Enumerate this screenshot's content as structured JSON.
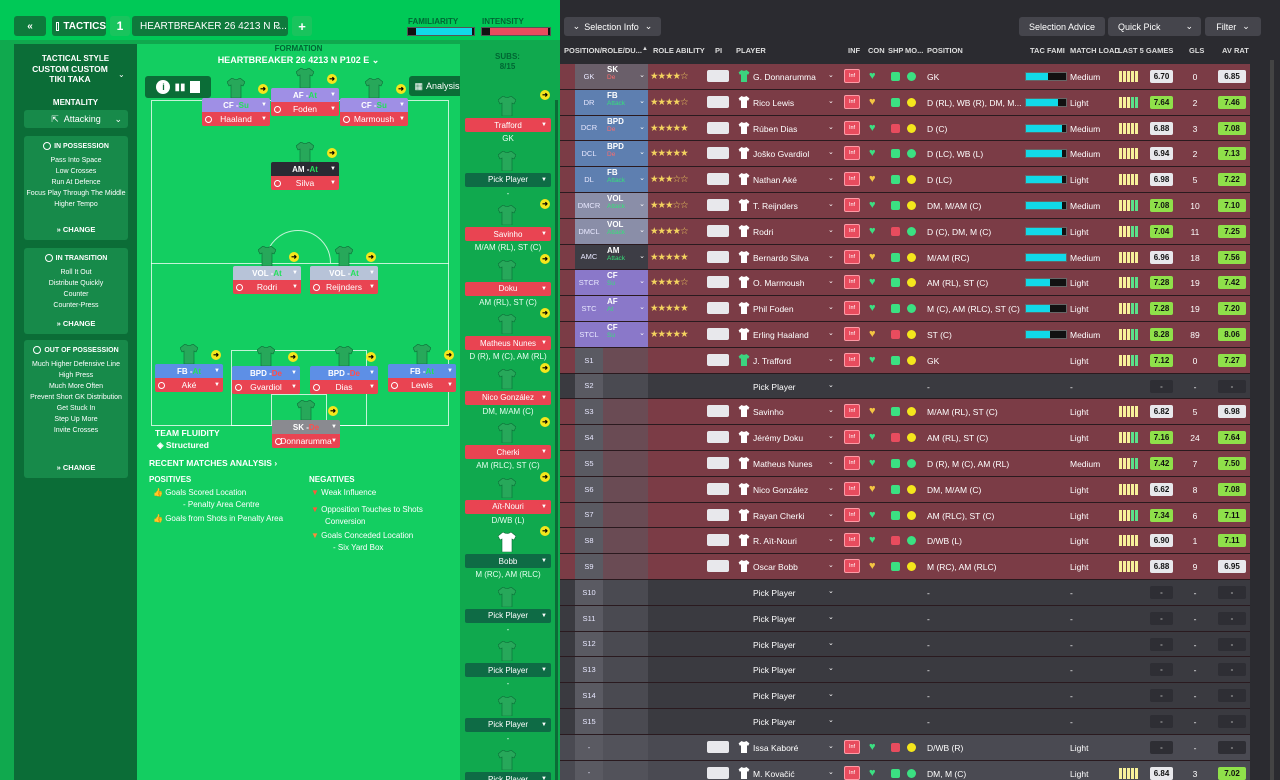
{
  "topbar": {
    "back": "«",
    "tactics": "TACTICS",
    "slot": "1",
    "tactic_name": "HEARTBREAKER 26 4213 N P...",
    "add": "+",
    "familiarity": "FAMILIARITY",
    "intensity": "INTENSITY"
  },
  "sidebar": {
    "style_title": "TACTICAL STYLE",
    "style_name": "CUSTOM CUSTOM TIKI TAKA",
    "mentality_label": "MENTALITY",
    "mentality": "Attacking",
    "boxes": [
      {
        "title": "IN POSSESSION",
        "items": [
          "Pass Into Space",
          "Low Crosses",
          "Run At Defence",
          "Focus Play Through The Middle",
          "Higher Tempo"
        ]
      },
      {
        "title": "IN TRANSITION",
        "items": [
          "Roll It Out",
          "Distribute Quickly",
          "Counter",
          "Counter-Press"
        ]
      },
      {
        "title": "OUT OF POSSESSION",
        "items": [
          "Much Higher Defensive Line",
          "High Press",
          "Much More Often",
          "Prevent Short GK Distribution",
          "Get Stuck In",
          "Step Up More",
          "Invite Crosses"
        ]
      }
    ],
    "change": "CHANGE"
  },
  "pitch": {
    "formation_label": "FORMATION",
    "formation": "HEARTBREAKER 26 4213 N P102 E",
    "analysis": "Analysis",
    "fluidity_label": "TEAM FLUIDITY",
    "fluidity": "Structured",
    "recent": "RECENT MATCHES ANALYSIS",
    "pos_label": "POSITIVES",
    "positives": [
      "Goals Scored Location",
      "- Penalty Area Centre",
      "Goals from Shots in Penalty Area"
    ],
    "neg_label": "NEGATIVES",
    "negatives": [
      "Weak Influence",
      "Opposition Touches to Shots",
      "Conversion",
      "Goals Conceded Location",
      "- Six Yard Box"
    ],
    "players": [
      {
        "role": "CF - ",
        "duty": "Su",
        "name": "Haaland"
      },
      {
        "role": "AF - ",
        "duty": "At",
        "name": "Foden"
      },
      {
        "role": "CF - ",
        "duty": "Su",
        "name": "Marmoush"
      },
      {
        "role": "AM - ",
        "duty": "At",
        "name": "Silva"
      },
      {
        "role": "VOL - ",
        "duty": "At",
        "name": "Rodri"
      },
      {
        "role": "VOL - ",
        "duty": "At",
        "name": "Reijnders"
      },
      {
        "role": "FB - ",
        "duty": "At",
        "name": "Aké"
      },
      {
        "role": "BPD - ",
        "duty": "De",
        "name": "Gvardiol"
      },
      {
        "role": "BPD - ",
        "duty": "De",
        "name": "Dias"
      },
      {
        "role": "FB - ",
        "duty": "At",
        "name": "Lewis"
      },
      {
        "role": "SK - ",
        "duty": "De",
        "name": "Donnarumma"
      }
    ]
  },
  "subs": {
    "label": "SUBS:",
    "count": "8/15",
    "slots": [
      {
        "name": "Trafford",
        "pos": "GK",
        "filled": true
      },
      {
        "name": "Pick Player",
        "pos": "-",
        "filled": false
      },
      {
        "name": "Savinho",
        "pos": "M/AM (RL), ST (C)",
        "filled": true
      },
      {
        "name": "Doku",
        "pos": "AM (RL), ST (C)",
        "filled": true
      },
      {
        "name": "Matheus Nunes",
        "pos": "D (R), M (C), AM (RL)",
        "filled": true
      },
      {
        "name": "Nico González",
        "pos": "DM, M/AM (C)",
        "filled": true
      },
      {
        "name": "Cherki",
        "pos": "AM (RLC), ST (C)",
        "filled": true
      },
      {
        "name": "Aït-Nouri",
        "pos": "D/WB (L)",
        "filled": true
      },
      {
        "name": "Bobb",
        "pos": "M (RC), AM (RLC)",
        "filled": true
      },
      {
        "name": "Pick Player",
        "pos": "-",
        "filled": false
      },
      {
        "name": "Pick Player",
        "pos": "-",
        "filled": false
      },
      {
        "name": "Pick Player",
        "pos": "-",
        "filled": false
      },
      {
        "name": "Pick Player",
        "pos": "-",
        "filled": false
      }
    ]
  },
  "right": {
    "selection_info": "Selection Info",
    "selection_advice": "Selection Advice",
    "quick_pick": "Quick Pick",
    "filter": "Filter",
    "headers": [
      "POSITION/ROLE/DU...",
      "ROLE ABILITY",
      "PI",
      "PLAYER",
      "INF",
      "CON",
      "SHP",
      "MO...",
      "POSITION",
      "TAC FAMI",
      "MATCH LOAD",
      "LAST 5 GAMES",
      "GLS",
      "AV RAT"
    ],
    "rows": [
      {
        "pos": "GK",
        "role": "SK",
        "duty": "De",
        "stars": "★★★★☆",
        "name": "G. Donnarumma",
        "position": "GK",
        "tac": 0.55,
        "load": "Medium",
        "rating": "6.70",
        "gls": "0",
        "avr": "6.85"
      },
      {
        "pos": "DR",
        "role": "FB",
        "duty": "Attack",
        "stars": "★★★★☆",
        "name": "Rico Lewis",
        "position": "D (RL), WB (R), DM, M...",
        "tac": 0.8,
        "load": "Light",
        "rating": "7.64",
        "gls": "2",
        "avr": "7.46"
      },
      {
        "pos": "DCR",
        "role": "BPD",
        "duty": "De",
        "stars": "★★★★★",
        "name": "Rúben Dias",
        "position": "D (C)",
        "tac": 0.9,
        "load": "Medium",
        "rating": "6.88",
        "gls": "3",
        "avr": "7.08"
      },
      {
        "pos": "DCL",
        "role": "BPD",
        "duty": "De",
        "stars": "★★★★★",
        "name": "Joško Gvardiol",
        "position": "D (LC), WB (L)",
        "tac": 0.9,
        "load": "Medium",
        "rating": "6.94",
        "gls": "2",
        "avr": "7.13"
      },
      {
        "pos": "DL",
        "role": "FB",
        "duty": "Attack",
        "stars": "★★★☆☆",
        "name": "Nathan Aké",
        "position": "D (LC)",
        "tac": 0.9,
        "load": "Light",
        "rating": "6.98",
        "gls": "5",
        "avr": "7.22"
      },
      {
        "pos": "DMCR",
        "role": "VOL",
        "duty": "Attack",
        "stars": "★★★☆☆",
        "name": "T. Reijnders",
        "position": "DM, M/AM (C)",
        "tac": 0.9,
        "load": "Medium",
        "rating": "7.08",
        "gls": "10",
        "avr": "7.10"
      },
      {
        "pos": "DMCL",
        "role": "VOL",
        "duty": "Attack",
        "stars": "★★★★☆",
        "name": "Rodri",
        "position": "D (C), DM, M (C)",
        "tac": 0.9,
        "load": "Light",
        "rating": "7.04",
        "gls": "11",
        "avr": "7.25"
      },
      {
        "pos": "AMC",
        "role": "AM",
        "duty": "Attack",
        "stars": "★★★★★",
        "name": "Bernardo Silva",
        "position": "M/AM (RC)",
        "tac": 1.0,
        "load": "Medium",
        "rating": "6.96",
        "gls": "18",
        "avr": "7.56"
      },
      {
        "pos": "STCR",
        "role": "CF",
        "duty": "Su",
        "stars": "★★★★☆",
        "name": "O. Marmoush",
        "position": "AM (RL), ST (C)",
        "tac": 0.6,
        "load": "Light",
        "rating": "7.28",
        "gls": "19",
        "avr": "7.42"
      },
      {
        "pos": "STC",
        "role": "AF",
        "duty": "At",
        "stars": "★★★★★",
        "name": "Phil Foden",
        "position": "M (C), AM (RLC), ST (C)",
        "tac": 0.6,
        "load": "Light",
        "rating": "7.28",
        "gls": "19",
        "avr": "7.20"
      },
      {
        "pos": "STCL",
        "role": "CF",
        "duty": "Su",
        "stars": "★★★★★",
        "name": "Erling Haaland",
        "position": "ST (C)",
        "tac": 0.6,
        "load": "Medium",
        "rating": "8.28",
        "gls": "89",
        "avr": "8.06"
      },
      {
        "pos": "S1",
        "name": "J. Trafford",
        "position": "GK",
        "load": "Light",
        "rating": "7.12",
        "gls": "0",
        "avr": "7.27"
      },
      {
        "pos": "S2",
        "name": "Pick Player",
        "position": "-",
        "load": "-",
        "rating": "-",
        "gls": "-",
        "avr": "-"
      },
      {
        "pos": "S3",
        "name": "Savinho",
        "position": "M/AM (RL), ST (C)",
        "load": "Light",
        "rating": "6.82",
        "gls": "5",
        "avr": "6.98"
      },
      {
        "pos": "S4",
        "name": "Jérémy Doku",
        "position": "AM (RL), ST (C)",
        "load": "Light",
        "rating": "7.16",
        "gls": "24",
        "avr": "7.64"
      },
      {
        "pos": "S5",
        "name": "Matheus Nunes",
        "position": "D (R), M (C), AM (RL)",
        "load": "Medium",
        "rating": "7.42",
        "gls": "7",
        "avr": "7.50"
      },
      {
        "pos": "S6",
        "name": "Nico González",
        "position": "DM, M/AM (C)",
        "load": "Light",
        "rating": "6.62",
        "gls": "8",
        "avr": "7.08"
      },
      {
        "pos": "S7",
        "name": "Rayan Cherki",
        "position": "AM (RLC), ST (C)",
        "load": "Light",
        "rating": "7.34",
        "gls": "6",
        "avr": "7.11"
      },
      {
        "pos": "S8",
        "name": "R. Aït-Nouri",
        "position": "D/WB (L)",
        "load": "Light",
        "rating": "6.90",
        "gls": "1",
        "avr": "7.11"
      },
      {
        "pos": "S9",
        "name": "Oscar Bobb",
        "position": "M (RC), AM (RLC)",
        "load": "Light",
        "rating": "6.88",
        "gls": "9",
        "avr": "6.95"
      },
      {
        "pos": "S10",
        "name": "Pick Player",
        "position": "-",
        "load": "-",
        "rating": "-",
        "gls": "-",
        "avr": "-"
      },
      {
        "pos": "S11",
        "name": "Pick Player",
        "position": "-",
        "load": "-",
        "rating": "-",
        "gls": "-",
        "avr": "-"
      },
      {
        "pos": "S12",
        "name": "Pick Player",
        "position": "-",
        "load": "-",
        "rating": "-",
        "gls": "-",
        "avr": "-"
      },
      {
        "pos": "S13",
        "name": "Pick Player",
        "position": "-",
        "load": "-",
        "rating": "-",
        "gls": "-",
        "avr": "-"
      },
      {
        "pos": "S14",
        "name": "Pick Player",
        "position": "-",
        "load": "-",
        "rating": "-",
        "gls": "-",
        "avr": "-"
      },
      {
        "pos": "S15",
        "name": "Pick Player",
        "position": "-",
        "load": "-",
        "rating": "-",
        "gls": "-",
        "avr": "-"
      },
      {
        "pos": "-",
        "name": "Issa Kaboré",
        "position": "D/WB (R)",
        "load": "Light",
        "rating": "-",
        "gls": "-",
        "avr": "-"
      },
      {
        "pos": "-",
        "name": "M. Kovačić",
        "position": "DM, M (C)",
        "load": "Light",
        "rating": "6.84",
        "gls": "3",
        "avr": "7.02"
      }
    ]
  }
}
